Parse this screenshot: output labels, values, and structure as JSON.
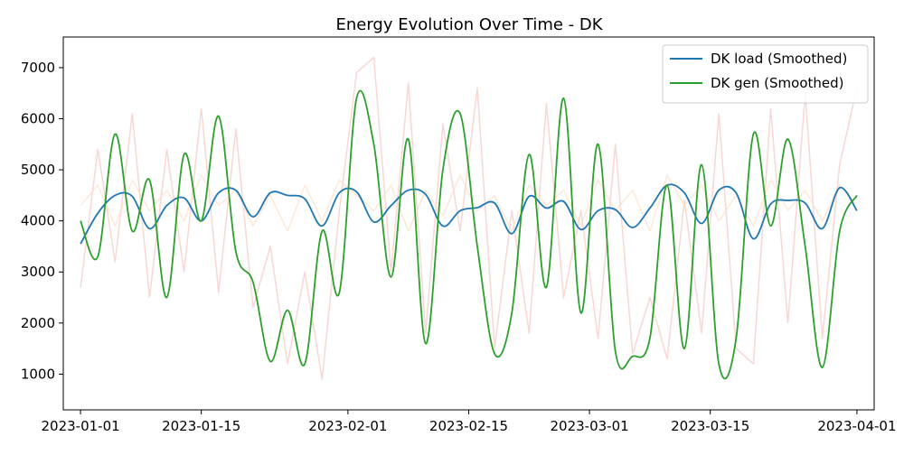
{
  "chart_data": {
    "type": "line",
    "title": "Energy Evolution Over Time - DK",
    "xlabel": "",
    "ylabel": "",
    "x_range": [
      "2022-12-30",
      "2023-04-03"
    ],
    "ylim": [
      300,
      7600
    ],
    "x_ticks": [
      "2023-01-01",
      "2023-01-15",
      "2023-02-01",
      "2023-02-15",
      "2023-03-01",
      "2023-03-15",
      "2023-04-01"
    ],
    "y_ticks": [
      1000,
      2000,
      3000,
      4000,
      5000,
      6000,
      7000
    ],
    "grid": false,
    "legend_position": "top-right",
    "x": [
      "2023-01-01",
      "2023-01-03",
      "2023-01-05",
      "2023-01-07",
      "2023-01-09",
      "2023-01-11",
      "2023-01-13",
      "2023-01-15",
      "2023-01-17",
      "2023-01-19",
      "2023-01-21",
      "2023-01-23",
      "2023-01-25",
      "2023-01-27",
      "2023-01-29",
      "2023-01-31",
      "2023-02-02",
      "2023-02-04",
      "2023-02-06",
      "2023-02-08",
      "2023-02-10",
      "2023-02-12",
      "2023-02-14",
      "2023-02-16",
      "2023-02-18",
      "2023-02-20",
      "2023-02-22",
      "2023-02-24",
      "2023-02-26",
      "2023-02-28",
      "2023-03-02",
      "2023-03-04",
      "2023-03-06",
      "2023-03-08",
      "2023-03-10",
      "2023-03-12",
      "2023-03-14",
      "2023-03-16",
      "2023-03-18",
      "2023-03-20",
      "2023-03-22",
      "2023-03-24",
      "2023-03-26",
      "2023-03-28",
      "2023-03-30",
      "2023-04-01"
    ],
    "series": [
      {
        "name": "DK load (Smoothed)",
        "color": "#1f77b4",
        "style": "solid",
        "values": [
          3550,
          4150,
          4500,
          4480,
          3850,
          4300,
          4450,
          4000,
          4550,
          4600,
          4080,
          4550,
          4500,
          4430,
          3900,
          4550,
          4570,
          3980,
          4300,
          4600,
          4520,
          3900,
          4200,
          4260,
          4350,
          3750,
          4480,
          4250,
          4380,
          3830,
          4200,
          4220,
          3870,
          4250,
          4700,
          4550,
          3950,
          4600,
          4550,
          3650,
          4330,
          4400,
          4350,
          3850,
          4650,
          4200
        ]
      },
      {
        "name": "DK gen (Smoothed)",
        "color": "#2ca02c",
        "style": "solid",
        "values": [
          4000,
          3300,
          5700,
          3800,
          4800,
          2500,
          5300,
          4000,
          6050,
          3400,
          2800,
          1250,
          2250,
          1200,
          3800,
          2600,
          6400,
          5500,
          2900,
          5600,
          1600,
          5000,
          6100,
          3500,
          1400,
          2200,
          5300,
          2700,
          6400,
          2200,
          5500,
          1450,
          1350,
          1700,
          4700,
          1500,
          5100,
          1200,
          1700,
          5700,
          3900,
          5600,
          3500,
          1130,
          3800,
          4500
        ]
      },
      {
        "name": "",
        "color": "#f4c7c3",
        "style": "faint",
        "values": [
          2700,
          5400,
          3200,
          6100,
          2500,
          5400,
          3000,
          6200,
          2600,
          5800,
          2300,
          3500,
          1200,
          3000,
          900,
          4200,
          6900,
          7200,
          3000,
          6700,
          1800,
          5900,
          3800,
          6600,
          1500,
          4200,
          1800,
          6300,
          2500,
          4200,
          1700,
          5500,
          1400,
          2500,
          1300,
          4400,
          1800,
          6100,
          1500,
          1200,
          6200,
          2000,
          6500,
          1700,
          5100,
          6600
        ]
      },
      {
        "name": "",
        "color": "#fde0c8",
        "style": "faint",
        "values": [
          4300,
          4700,
          3900,
          4800,
          4200,
          4600,
          4000,
          4900,
          4300,
          4600,
          3900,
          4500,
          3800,
          4700,
          4000,
          4800,
          4500,
          4200,
          4700,
          3800,
          4600,
          4100,
          4900,
          4200,
          4500,
          3800,
          4700,
          4300,
          4600,
          3900,
          4800,
          4200,
          4600,
          3800,
          4900,
          4300,
          4700,
          4000,
          4500,
          3900,
          4800,
          4200,
          4600,
          4000,
          4700,
          4300
        ]
      }
    ]
  }
}
